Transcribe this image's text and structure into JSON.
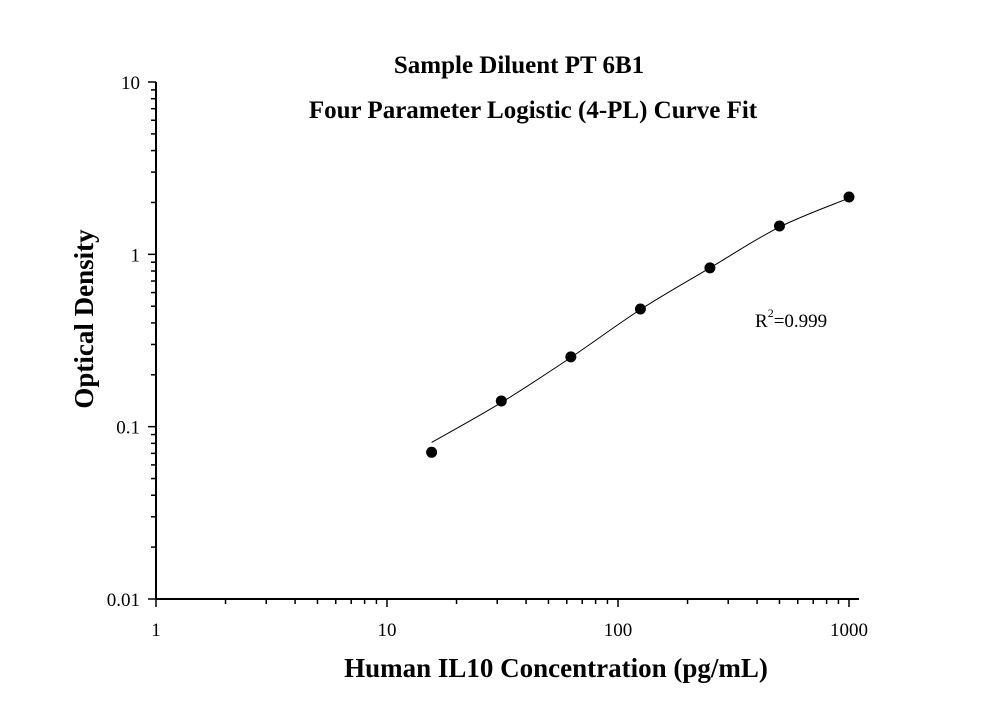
{
  "chart_data": {
    "type": "scatter",
    "title": "Sample Diluent PT 6B1",
    "subtitle": "Four Parameter Logistic (4-PL) Curve Fit",
    "xlabel": "Human IL10 Concentration (pg/mL)",
    "ylabel": "Optical Density",
    "xscale": "log",
    "yscale": "log",
    "xlim": [
      1,
      1000
    ],
    "ylim": [
      0.01,
      10
    ],
    "xticks": [
      "1",
      "10",
      "100",
      "1000"
    ],
    "yticks": [
      "0.01",
      "0.1",
      "1",
      "10"
    ],
    "grid": false,
    "x": [
      15.6,
      31.25,
      62.5,
      125,
      250,
      500,
      1000
    ],
    "y": [
      0.071,
      0.141,
      0.254,
      0.482,
      0.834,
      1.46,
      2.15
    ],
    "fit_curve": {
      "x": [
        15.6,
        31.25,
        62.5,
        125,
        250,
        500,
        1000
      ],
      "y": [
        0.081,
        0.138,
        0.252,
        0.478,
        0.834,
        1.44,
        2.12
      ]
    },
    "annotation": {
      "label": "R",
      "superscript": "2",
      "value": "=0.999"
    },
    "colors": {
      "points": "#000000",
      "curve": "#000000",
      "axes": "#000000"
    }
  }
}
